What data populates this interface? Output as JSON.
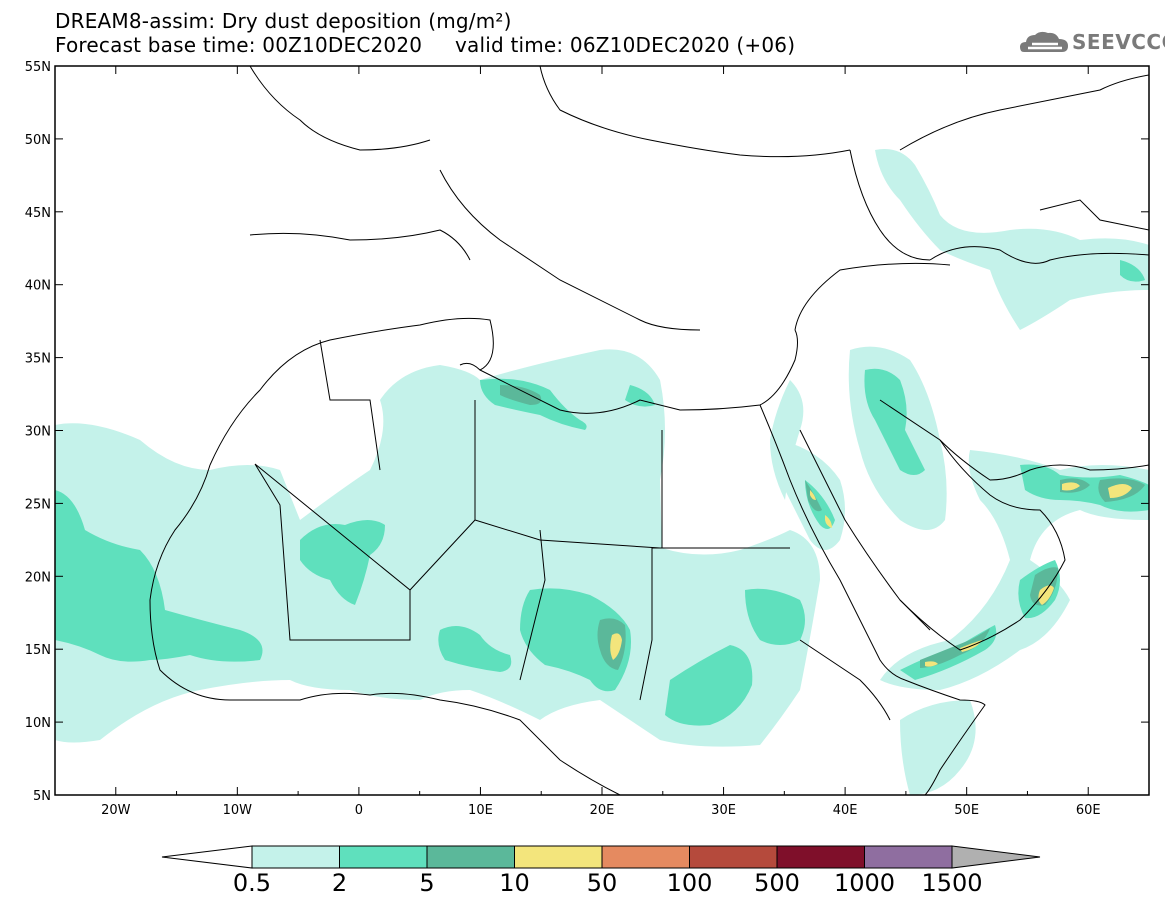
{
  "title_line1": "DREAM8-assim: Dry dust deposition (mg/m²)",
  "title_line2": "Forecast base time: 00Z10DEC2020     valid time: 06Z10DEC2020 (+06)",
  "logo": {
    "text": "SEEVCCC",
    "icon": "cloud-icon"
  },
  "map": {
    "lat_labels": [
      "55N",
      "50N",
      "45N",
      "40N",
      "35N",
      "30N",
      "25N",
      "20N",
      "15N",
      "10N",
      "5N"
    ],
    "lon_labels": [
      "20W",
      "10W",
      "0",
      "10E",
      "20E",
      "30E",
      "40E",
      "50E",
      "60E"
    ]
  },
  "colorbar": {
    "labels": [
      "0.5",
      "2",
      "5",
      "10",
      "50",
      "100",
      "500",
      "1000",
      "1500"
    ],
    "colors": [
      "#c4f2ea",
      "#5fe0bd",
      "#5bb89a",
      "#f3e57c",
      "#e58a60",
      "#b54a3c",
      "#7f0f2a",
      "#8f6ea0",
      "#b0b0b0"
    ]
  }
}
